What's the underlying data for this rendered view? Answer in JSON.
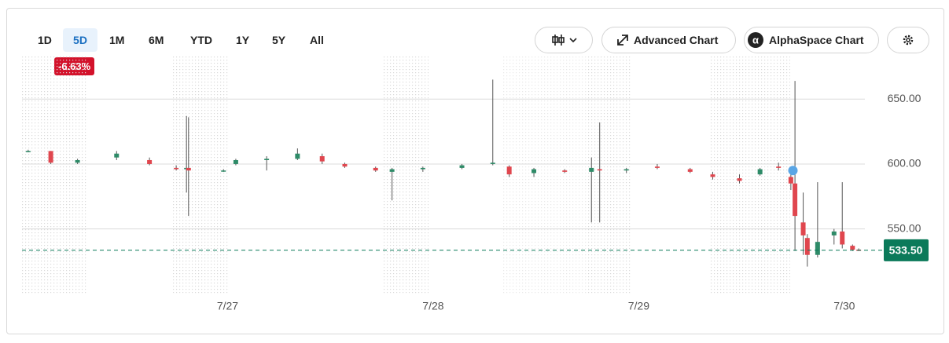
{
  "toolbar": {
    "ranges": [
      "1D",
      "5D",
      "1M",
      "6M",
      "YTD",
      "1Y",
      "5Y",
      "All"
    ],
    "active_range": 1,
    "change_badge": "-6.63%",
    "buttons": [
      "Advanced Chart",
      "AlphaSpace Chart"
    ]
  },
  "chart_data": {
    "type": "candlestick",
    "x": [
      26.03,
      26.14,
      26.27,
      26.46,
      26.62,
      26.75,
      26.8,
      26.81,
      26.98,
      27.04,
      27.19,
      27.34,
      27.46,
      27.57,
      27.72,
      27.8,
      27.95,
      28.14,
      28.29,
      28.37,
      28.49,
      28.64,
      28.77,
      28.81,
      28.94,
      29.09,
      29.25,
      29.36,
      29.49,
      29.59,
      29.68,
      29.74,
      29.76,
      29.8,
      29.82,
      29.87,
      29.95,
      29.99,
      30.04,
      30.07
    ],
    "open": [
      610,
      610,
      601,
      605,
      603,
      597,
      596,
      597,
      595,
      600,
      603,
      604,
      606,
      600,
      597,
      594,
      596,
      597,
      600,
      598,
      593,
      595,
      594,
      596,
      595,
      598,
      596,
      592,
      589,
      592,
      598,
      590,
      585,
      555,
      543,
      530,
      545,
      548,
      537,
      534
    ],
    "high": [
      611,
      610,
      604,
      610,
      605,
      599,
      637,
      636,
      596,
      604,
      606,
      612,
      608,
      601,
      598,
      597,
      598,
      600,
      665,
      599,
      597,
      596,
      605,
      632,
      597,
      600,
      597,
      594,
      592,
      597,
      601,
      592,
      664,
      578,
      546,
      586,
      550,
      586,
      538,
      535
    ],
    "low": [
      609,
      600,
      600,
      603,
      599,
      595,
      578,
      560,
      594,
      599,
      595,
      603,
      600,
      597,
      594,
      572,
      594,
      596,
      599,
      590,
      590,
      593,
      555,
      555,
      593,
      596,
      593,
      588,
      585,
      591,
      595,
      580,
      533,
      530,
      521,
      528,
      538,
      535,
      533,
      533
    ],
    "close": [
      610,
      601,
      603,
      608,
      600,
      596,
      597,
      595,
      595,
      603,
      604,
      608,
      602,
      598,
      595,
      596,
      597,
      599,
      601,
      592,
      596,
      594,
      597,
      595,
      596,
      597,
      594,
      590,
      587,
      596,
      597,
      585,
      560,
      545,
      530,
      540,
      548,
      538,
      534,
      533.5
    ],
    "up_color": "#2e8b68",
    "down_color": "#e0464e",
    "xlim": [
      26.0,
      30.1
    ],
    "xticks": [
      {
        "value": 27,
        "label": "7/27"
      },
      {
        "value": 28,
        "label": "7/28"
      },
      {
        "value": 29,
        "label": "7/29"
      },
      {
        "value": 30,
        "label": "7/30"
      }
    ],
    "ylim": [
      499,
      684
    ],
    "yticks": [
      {
        "value": 550,
        "label": "550.00"
      },
      {
        "value": 600,
        "label": "600.00"
      },
      {
        "value": 650,
        "label": "650.00"
      }
    ],
    "grid": true,
    "last_price": {
      "value": 533.5,
      "label": "533.50",
      "color": "#0b7a5a"
    },
    "highlight_point": {
      "x": 29.75,
      "y": 595,
      "color": "#5aa6e6"
    }
  }
}
